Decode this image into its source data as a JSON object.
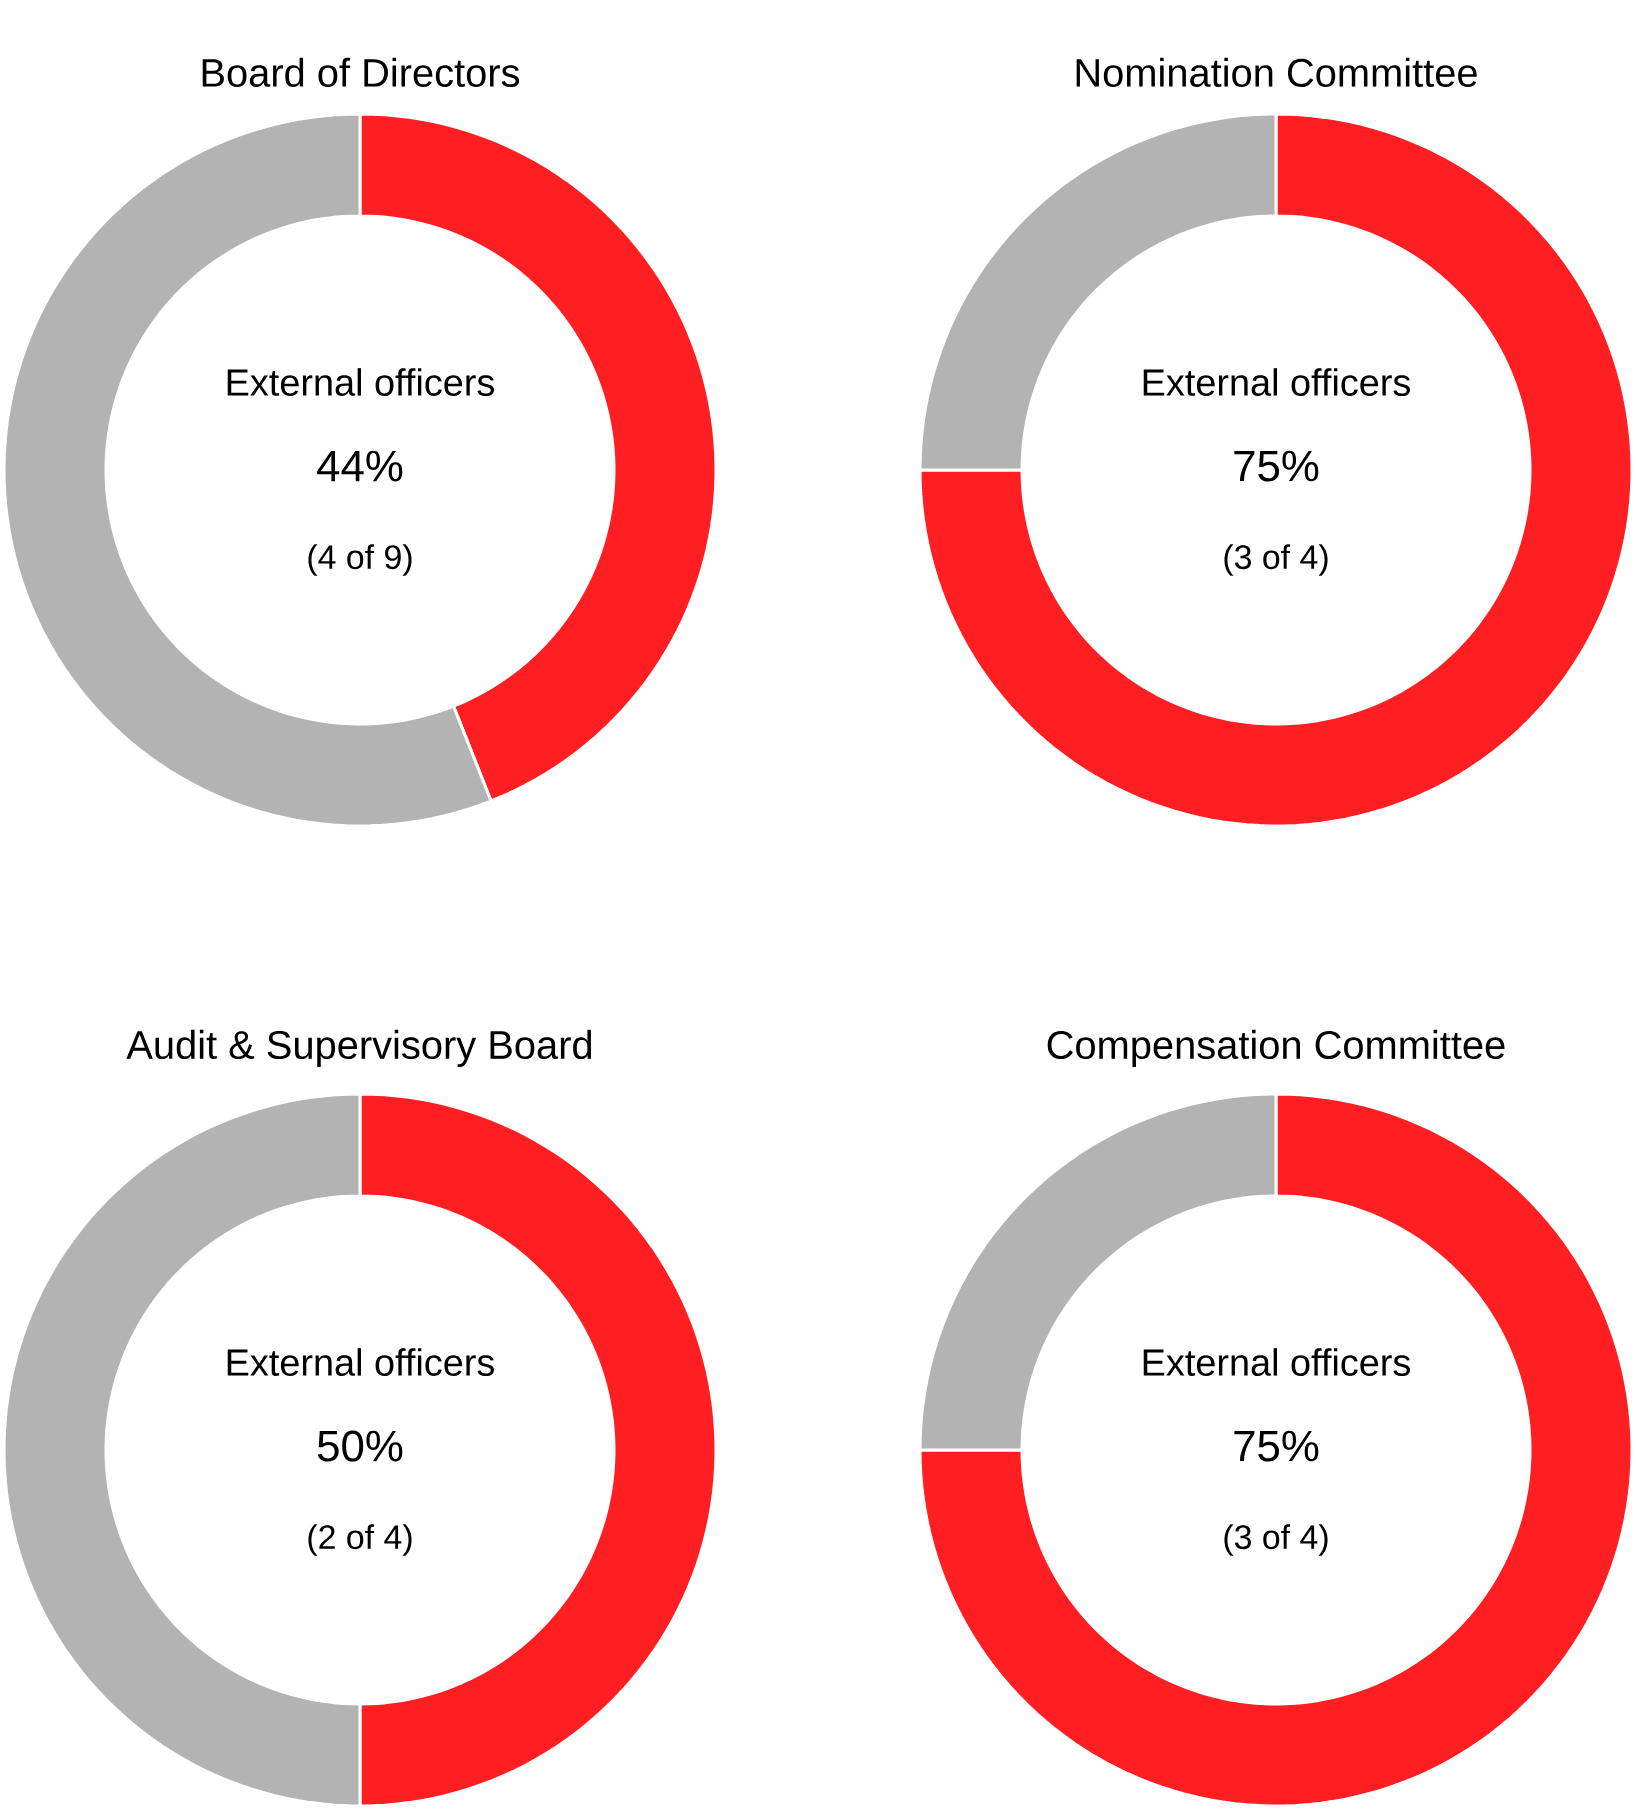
{
  "chart_data": [
    {
      "type": "donut",
      "title": "Board of Directors",
      "categories": [
        null,
        null
      ],
      "values": [
        44,
        56
      ],
      "colors": [
        "#ff1e22",
        "#b3b3b3"
      ],
      "annotations": [
        "External officers",
        "44%",
        "(4 of 9)"
      ]
    },
    {
      "type": "donut",
      "title": "Nomination Committee",
      "categories": [
        null,
        null
      ],
      "values": [
        75,
        25
      ],
      "colors": [
        "#ff1e22",
        "#b3b3b3"
      ],
      "annotations": [
        "External officers",
        "75%",
        "(3 of 4)"
      ]
    },
    {
      "type": "donut",
      "title": "Audit & Supervisory Board",
      "categories": [
        null,
        null
      ],
      "values": [
        50,
        50
      ],
      "colors": [
        "#ff1e22",
        "#b3b3b3"
      ],
      "annotations": [
        "External officers",
        "50%",
        "(2 of 4)"
      ]
    },
    {
      "type": "donut",
      "title": "Compensation Committee",
      "categories": [
        null,
        null
      ],
      "values": [
        75,
        25
      ],
      "colors": [
        "#ff1e22",
        "#b3b3b3"
      ],
      "annotations": [
        "External officers",
        "75%",
        "(3 of 4)"
      ]
    }
  ]
}
